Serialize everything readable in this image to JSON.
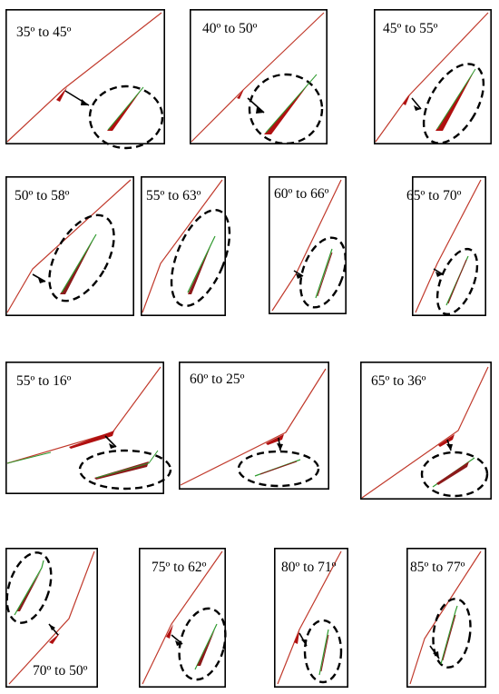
{
  "colors": {
    "frame": "#000000",
    "fracture_line": "#c0392b",
    "fracture_bulge": "#b01010",
    "green_line": "#2e9a2e",
    "arrow": "#000000",
    "ellipse": "#000000"
  },
  "panels": [
    {
      "label": "35º to 45º"
    },
    {
      "label": "40º to 50º"
    },
    {
      "label": "45º to 55º"
    },
    {
      "label": "50º to 58º"
    },
    {
      "label": "55º to 63º"
    },
    {
      "label": "60º to 66º"
    },
    {
      "label": "65º to 70º"
    },
    {
      "label": "55º to 16º"
    },
    {
      "label": "60º to 25º"
    },
    {
      "label": "65º to 36º"
    },
    {
      "label": "70º to 50º"
    },
    {
      "label": "75º to 62º"
    },
    {
      "label": "80º to 71º"
    },
    {
      "label": "85º to 77º"
    }
  ]
}
